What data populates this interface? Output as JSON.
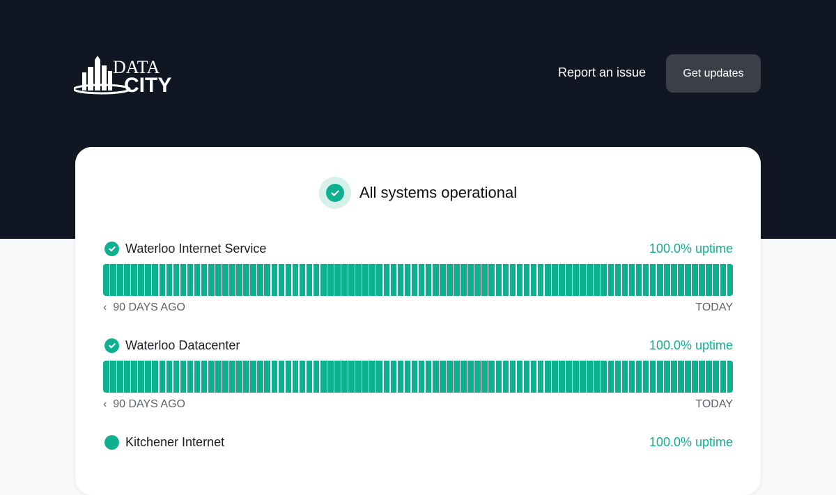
{
  "header": {
    "logo_text": "DATA CITY",
    "report_label": "Report an issue",
    "updates_label": "Get updates"
  },
  "status": {
    "text": "All systems operational",
    "icon": "check-circle-icon"
  },
  "colors": {
    "operational": "#0fb08f",
    "header_bg": "#111722"
  },
  "services": [
    {
      "name": "Waterloo Internet Service",
      "uptime": "100.0% uptime",
      "days": 90,
      "operational_days": 90,
      "start_label": "90 DAYS AGO",
      "end_label": "TODAY"
    },
    {
      "name": "Waterloo Datacenter",
      "uptime": "100.0% uptime",
      "days": 90,
      "operational_days": 90,
      "start_label": "90 DAYS AGO",
      "end_label": "TODAY"
    },
    {
      "name": "Kitchener Internet",
      "uptime": "100.0% uptime"
    }
  ]
}
